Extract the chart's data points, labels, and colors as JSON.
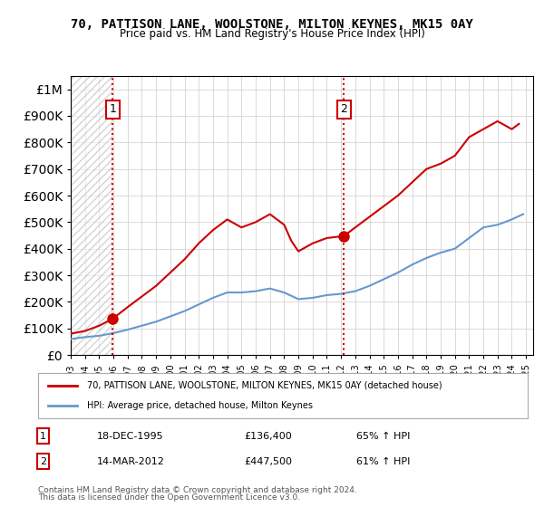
{
  "title": "70, PATTISON LANE, WOOLSTONE, MILTON KEYNES, MK15 0AY",
  "subtitle": "Price paid vs. HM Land Registry's House Price Index (HPI)",
  "legend_line1": "70, PATTISON LANE, WOOLSTONE, MILTON KEYNES, MK15 0AY (detached house)",
  "legend_line2": "HPI: Average price, detached house, Milton Keynes",
  "annotation1_label": "1",
  "annotation1_date": "18-DEC-1995",
  "annotation1_price": "£136,400",
  "annotation1_hpi": "65% ↑ HPI",
  "annotation1_year": 1995.96,
  "annotation1_value": 136400,
  "annotation2_label": "2",
  "annotation2_date": "14-MAR-2012",
  "annotation2_price": "£447,500",
  "annotation2_hpi": "61% ↑ HPI",
  "annotation2_year": 2012.2,
  "annotation2_value": 447500,
  "footer1": "Contains HM Land Registry data © Crown copyright and database right 2024.",
  "footer2": "This data is licensed under the Open Government Licence v3.0.",
  "red_line_color": "#cc0000",
  "blue_line_color": "#6699cc",
  "hatch_color": "#cccccc",
  "grid_color": "#cccccc",
  "background_color": "#ffffff",
  "ylim": [
    0,
    1050000
  ],
  "xlim_left": 1993.0,
  "xlim_right": 2025.5,
  "red_years": [
    1993.0,
    1994.0,
    1995.0,
    1995.96,
    1997.0,
    1998.0,
    1999.0,
    2000.0,
    2001.0,
    2002.0,
    2003.0,
    2004.0,
    2005.0,
    2006.0,
    2007.0,
    2008.0,
    2008.5,
    2009.0,
    2010.0,
    2011.0,
    2012.2,
    2013.0,
    2014.0,
    2015.0,
    2016.0,
    2017.0,
    2018.0,
    2019.0,
    2020.0,
    2021.0,
    2022.0,
    2023.0,
    2024.0,
    2024.5
  ],
  "red_values": [
    80000,
    90000,
    110000,
    136400,
    180000,
    220000,
    260000,
    310000,
    360000,
    420000,
    470000,
    510000,
    480000,
    500000,
    530000,
    490000,
    430000,
    390000,
    420000,
    440000,
    447500,
    480000,
    520000,
    560000,
    600000,
    650000,
    700000,
    720000,
    750000,
    820000,
    850000,
    880000,
    850000,
    870000
  ],
  "blue_years": [
    1993.0,
    1994.0,
    1995.0,
    1996.0,
    1997.0,
    1998.0,
    1999.0,
    2000.0,
    2001.0,
    2002.0,
    2003.0,
    2004.0,
    2005.0,
    2006.0,
    2007.0,
    2008.0,
    2009.0,
    2010.0,
    2011.0,
    2012.0,
    2013.0,
    2014.0,
    2015.0,
    2016.0,
    2017.0,
    2018.0,
    2019.0,
    2020.0,
    2021.0,
    2022.0,
    2023.0,
    2024.0,
    2024.8
  ],
  "blue_values": [
    60000,
    67000,
    72000,
    82000,
    95000,
    110000,
    125000,
    145000,
    165000,
    190000,
    215000,
    235000,
    235000,
    240000,
    250000,
    235000,
    210000,
    215000,
    225000,
    230000,
    240000,
    260000,
    285000,
    310000,
    340000,
    365000,
    385000,
    400000,
    440000,
    480000,
    490000,
    510000,
    530000
  ],
  "hatch_end_year": 1995.96,
  "xticks": [
    1993,
    1994,
    1995,
    1996,
    1997,
    1998,
    1999,
    2000,
    2001,
    2002,
    2003,
    2004,
    2005,
    2006,
    2007,
    2008,
    2009,
    2010,
    2011,
    2012,
    2013,
    2014,
    2015,
    2016,
    2017,
    2018,
    2019,
    2020,
    2021,
    2022,
    2023,
    2024,
    2025
  ]
}
